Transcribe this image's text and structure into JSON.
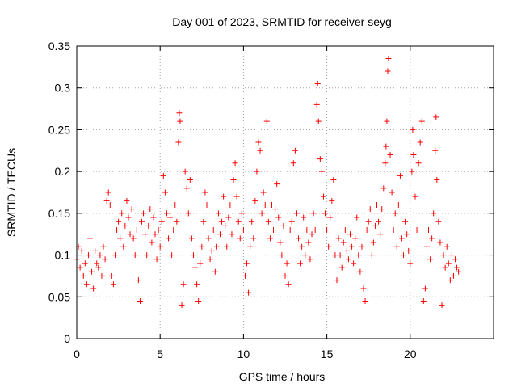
{
  "chart_data": {
    "type": "scatter",
    "title": "Day 001 of 2023, SRMTID for receiver seyg",
    "xlabel": "GPS time / hours",
    "ylabel": "SRMTID / TECUs",
    "xlim": [
      0,
      25
    ],
    "ylim": [
      0,
      0.35
    ],
    "xticks": [
      0,
      5,
      10,
      15,
      20
    ],
    "xtick_labels": [
      "0",
      "5",
      "10",
      "15",
      "20"
    ],
    "yticks": [
      0,
      0.05,
      0.1,
      0.15,
      0.2,
      0.25,
      0.3,
      0.35
    ],
    "ytick_labels": [
      "0",
      "0.05",
      "0.1",
      "0.15",
      "0.2",
      "0.25",
      "0.3",
      "0.35"
    ],
    "grid": true,
    "marker": "+",
    "colors": {
      "series": "#ff0000",
      "grid": "#a0a0a0",
      "axis": "#000000"
    },
    "series": [
      {
        "name": "SRMTID",
        "points": [
          [
            0.0,
            0.095
          ],
          [
            0.1,
            0.11
          ],
          [
            0.2,
            0.085
          ],
          [
            0.3,
            0.105
          ],
          [
            0.4,
            0.075
          ],
          [
            0.5,
            0.09
          ],
          [
            0.6,
            0.065
          ],
          [
            0.7,
            0.1
          ],
          [
            0.8,
            0.12
          ],
          [
            0.9,
            0.08
          ],
          [
            1.0,
            0.06
          ],
          [
            1.1,
            0.105
          ],
          [
            1.2,
            0.09
          ],
          [
            1.3,
            0.085
          ],
          [
            1.4,
            0.1
          ],
          [
            1.5,
            0.075
          ],
          [
            1.6,
            0.11
          ],
          [
            1.7,
            0.095
          ],
          [
            1.8,
            0.165
          ],
          [
            1.9,
            0.175
          ],
          [
            2.0,
            0.16
          ],
          [
            2.1,
            0.075
          ],
          [
            2.2,
            0.065
          ],
          [
            2.3,
            0.1
          ],
          [
            2.4,
            0.13
          ],
          [
            2.5,
            0.14
          ],
          [
            2.6,
            0.12
          ],
          [
            2.7,
            0.15
          ],
          [
            2.8,
            0.11
          ],
          [
            2.9,
            0.135
          ],
          [
            3.0,
            0.165
          ],
          [
            3.1,
            0.145
          ],
          [
            3.2,
            0.125
          ],
          [
            3.3,
            0.155
          ],
          [
            3.4,
            0.12
          ],
          [
            3.5,
            0.1
          ],
          [
            3.6,
            0.13
          ],
          [
            3.7,
            0.07
          ],
          [
            3.8,
            0.045
          ],
          [
            3.9,
            0.14
          ],
          [
            4.0,
            0.15
          ],
          [
            4.1,
            0.125
          ],
          [
            4.2,
            0.1
          ],
          [
            4.3,
            0.135
          ],
          [
            4.4,
            0.155
          ],
          [
            4.5,
            0.115
          ],
          [
            4.6,
            0.145
          ],
          [
            4.7,
            0.125
          ],
          [
            4.8,
            0.095
          ],
          [
            4.9,
            0.13
          ],
          [
            5.0,
            0.11
          ],
          [
            5.1,
            0.14
          ],
          [
            5.2,
            0.195
          ],
          [
            5.3,
            0.175
          ],
          [
            5.4,
            0.15
          ],
          [
            5.5,
            0.12
          ],
          [
            5.6,
            0.145
          ],
          [
            5.7,
            0.1
          ],
          [
            5.8,
            0.13
          ],
          [
            5.9,
            0.16
          ],
          [
            6.0,
            0.14
          ],
          [
            6.1,
            0.235
          ],
          [
            6.15,
            0.27
          ],
          [
            6.2,
            0.26
          ],
          [
            6.3,
            0.04
          ],
          [
            6.4,
            0.065
          ],
          [
            6.5,
            0.2
          ],
          [
            6.6,
            0.18
          ],
          [
            6.7,
            0.15
          ],
          [
            6.8,
            0.19
          ],
          [
            6.9,
            0.12
          ],
          [
            7.0,
            0.1
          ],
          [
            7.1,
            0.085
          ],
          [
            7.2,
            0.065
          ],
          [
            7.3,
            0.045
          ],
          [
            7.4,
            0.09
          ],
          [
            7.5,
            0.11
          ],
          [
            7.6,
            0.14
          ],
          [
            7.7,
            0.175
          ],
          [
            7.8,
            0.16
          ],
          [
            7.9,
            0.12
          ],
          [
            8.0,
            0.095
          ],
          [
            8.1,
            0.105
          ],
          [
            8.2,
            0.13
          ],
          [
            8.3,
            0.08
          ],
          [
            8.4,
            0.11
          ],
          [
            8.5,
            0.15
          ],
          [
            8.6,
            0.125
          ],
          [
            8.7,
            0.14
          ],
          [
            8.8,
            0.17
          ],
          [
            8.9,
            0.135
          ],
          [
            9.0,
            0.11
          ],
          [
            9.1,
            0.145
          ],
          [
            9.2,
            0.16
          ],
          [
            9.3,
            0.125
          ],
          [
            9.4,
            0.19
          ],
          [
            9.5,
            0.21
          ],
          [
            9.6,
            0.17
          ],
          [
            9.7,
            0.14
          ],
          [
            9.8,
            0.12
          ],
          [
            9.9,
            0.15
          ],
          [
            10.0,
            0.13
          ],
          [
            10.1,
            0.075
          ],
          [
            10.2,
            0.09
          ],
          [
            10.3,
            0.055
          ],
          [
            10.4,
            0.11
          ],
          [
            10.5,
            0.14
          ],
          [
            10.6,
            0.12
          ],
          [
            10.7,
            0.165
          ],
          [
            10.8,
            0.2
          ],
          [
            10.9,
            0.235
          ],
          [
            11.0,
            0.225
          ],
          [
            11.1,
            0.15
          ],
          [
            11.2,
            0.175
          ],
          [
            11.3,
            0.16
          ],
          [
            11.4,
            0.26
          ],
          [
            11.5,
            0.14
          ],
          [
            11.6,
            0.12
          ],
          [
            11.7,
            0.16
          ],
          [
            11.8,
            0.13
          ],
          [
            11.9,
            0.155
          ],
          [
            12.0,
            0.185
          ],
          [
            12.1,
            0.145
          ],
          [
            12.2,
            0.115
          ],
          [
            12.3,
            0.1
          ],
          [
            12.4,
            0.135
          ],
          [
            12.5,
            0.075
          ],
          [
            12.6,
            0.09
          ],
          [
            12.7,
            0.065
          ],
          [
            12.8,
            0.13
          ],
          [
            12.9,
            0.14
          ],
          [
            13.0,
            0.21
          ],
          [
            13.1,
            0.225
          ],
          [
            13.2,
            0.15
          ],
          [
            13.3,
            0.12
          ],
          [
            13.4,
            0.09
          ],
          [
            13.5,
            0.11
          ],
          [
            13.6,
            0.145
          ],
          [
            13.7,
            0.1
          ],
          [
            13.8,
            0.13
          ],
          [
            13.9,
            0.115
          ],
          [
            14.0,
            0.095
          ],
          [
            14.1,
            0.125
          ],
          [
            14.2,
            0.15
          ],
          [
            14.3,
            0.13
          ],
          [
            14.4,
            0.28
          ],
          [
            14.45,
            0.305
          ],
          [
            14.5,
            0.26
          ],
          [
            14.6,
            0.215
          ],
          [
            14.7,
            0.2
          ],
          [
            14.8,
            0.17
          ],
          [
            14.9,
            0.15
          ],
          [
            15.0,
            0.13
          ],
          [
            15.1,
            0.11
          ],
          [
            15.2,
            0.145
          ],
          [
            15.3,
            0.165
          ],
          [
            15.4,
            0.19
          ],
          [
            15.5,
            0.1
          ],
          [
            15.6,
            0.07
          ],
          [
            15.7,
            0.12
          ],
          [
            15.8,
            0.1
          ],
          [
            15.9,
            0.085
          ],
          [
            16.0,
            0.115
          ],
          [
            16.1,
            0.13
          ],
          [
            16.2,
            0.105
          ],
          [
            16.3,
            0.095
          ],
          [
            16.4,
            0.125
          ],
          [
            16.5,
            0.11
          ],
          [
            16.6,
            0.09
          ],
          [
            16.7,
            0.12
          ],
          [
            16.8,
            0.145
          ],
          [
            16.9,
            0.1
          ],
          [
            17.0,
            0.08
          ],
          [
            17.1,
            0.11
          ],
          [
            17.2,
            0.06
          ],
          [
            17.3,
            0.045
          ],
          [
            17.4,
            0.13
          ],
          [
            17.5,
            0.14
          ],
          [
            17.6,
            0.155
          ],
          [
            17.7,
            0.1
          ],
          [
            17.8,
            0.115
          ],
          [
            17.9,
            0.135
          ],
          [
            18.0,
            0.16
          ],
          [
            18.1,
            0.14
          ],
          [
            18.2,
            0.125
          ],
          [
            18.3,
            0.155
          ],
          [
            18.4,
            0.18
          ],
          [
            18.5,
            0.21
          ],
          [
            18.55,
            0.23
          ],
          [
            18.6,
            0.26
          ],
          [
            18.65,
            0.32
          ],
          [
            18.7,
            0.335
          ],
          [
            18.8,
            0.22
          ],
          [
            18.9,
            0.175
          ],
          [
            19.0,
            0.13
          ],
          [
            19.1,
            0.15
          ],
          [
            19.2,
            0.11
          ],
          [
            19.3,
            0.16
          ],
          [
            19.4,
            0.195
          ],
          [
            19.5,
            0.12
          ],
          [
            19.6,
            0.1
          ],
          [
            19.7,
            0.14
          ],
          [
            19.8,
            0.125
          ],
          [
            19.9,
            0.105
          ],
          [
            20.0,
            0.09
          ],
          [
            20.1,
            0.2
          ],
          [
            20.15,
            0.25
          ],
          [
            20.2,
            0.22
          ],
          [
            20.3,
            0.17
          ],
          [
            20.4,
            0.13
          ],
          [
            20.5,
            0.21
          ],
          [
            20.6,
            0.235
          ],
          [
            20.7,
            0.26
          ],
          [
            20.8,
            0.045
          ],
          [
            20.9,
            0.06
          ],
          [
            21.0,
            0.11
          ],
          [
            21.1,
            0.13
          ],
          [
            21.2,
            0.095
          ],
          [
            21.3,
            0.12
          ],
          [
            21.4,
            0.15
          ],
          [
            21.5,
            0.225
          ],
          [
            21.55,
            0.265
          ],
          [
            21.6,
            0.19
          ],
          [
            21.7,
            0.14
          ],
          [
            21.8,
            0.115
          ],
          [
            21.9,
            0.04
          ],
          [
            22.0,
            0.1
          ],
          [
            22.1,
            0.085
          ],
          [
            22.2,
            0.11
          ],
          [
            22.3,
            0.09
          ],
          [
            22.4,
            0.07
          ],
          [
            22.5,
            0.1
          ],
          [
            22.6,
            0.075
          ],
          [
            22.7,
            0.095
          ],
          [
            22.8,
            0.085
          ],
          [
            22.9,
            0.08
          ]
        ]
      }
    ]
  }
}
